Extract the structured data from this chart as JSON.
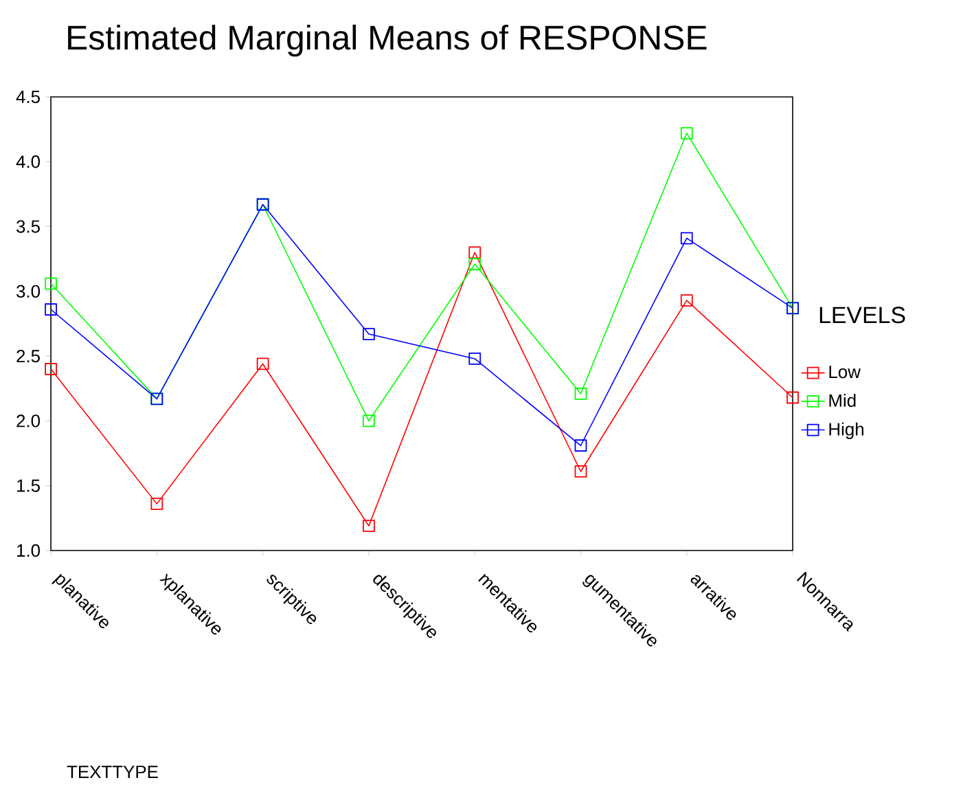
{
  "chart_data": {
    "type": "line",
    "title": "Estimated Marginal Means of RESPONSE",
    "annotations": [
      "TEXTTYPE"
    ],
    "legend_title": "LEVELS",
    "categories": [
      "planative",
      "xplanative",
      "scriptive",
      "descriptive",
      "mentative",
      "gumentative",
      "arrative",
      "Nonnarra"
    ],
    "series": [
      {
        "name": "Low",
        "color": "#ff0000",
        "values": [
          2.4,
          1.36,
          2.44,
          1.19,
          3.3,
          1.61,
          2.93,
          2.18
        ]
      },
      {
        "name": "Mid",
        "color": "#00ff00",
        "values": [
          3.06,
          2.17,
          3.67,
          2.0,
          3.21,
          2.21,
          4.22,
          2.87
        ]
      },
      {
        "name": "High",
        "color": "#0000ff",
        "values": [
          2.86,
          2.17,
          3.67,
          2.67,
          2.48,
          1.81,
          3.41,
          2.87
        ]
      }
    ],
    "ylim": [
      1.0,
      4.5
    ],
    "yticks": [
      {
        "value": 1.0,
        "label": "1.0"
      },
      {
        "value": 1.5,
        "label": "1.5"
      },
      {
        "value": 2.0,
        "label": "2.0"
      },
      {
        "value": 2.5,
        "label": "2.5"
      },
      {
        "value": 3.0,
        "label": "3.0"
      },
      {
        "value": 3.5,
        "label": "3.5"
      },
      {
        "value": 4.0,
        "label": "4.0"
      },
      {
        "value": 4.5,
        "label": "4.5"
      }
    ],
    "marker": "square",
    "line_style": "solid",
    "grid": false,
    "legend": "right"
  }
}
